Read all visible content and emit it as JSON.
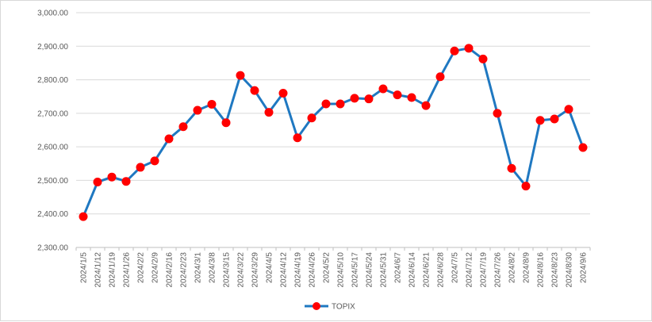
{
  "chart_data": {
    "type": "line",
    "title": "",
    "xlabel": "",
    "ylabel": "",
    "ylim": [
      2300,
      3000
    ],
    "y_ticks": [
      "2,300.00",
      "2,400.00",
      "2,500.00",
      "2,600.00",
      "2,700.00",
      "2,800.00",
      "2,900.00",
      "3,000.00"
    ],
    "grid": true,
    "legend_position": "bottom",
    "categories": [
      "2024/1/5",
      "2024/1/12",
      "2024/1/19",
      "2024/1/26",
      "2024/2/2",
      "2024/2/9",
      "2024/2/16",
      "2024/2/23",
      "2024/3/1",
      "2024/3/8",
      "2024/3/15",
      "2024/3/22",
      "2024/3/29",
      "2024/4/5",
      "2024/4/12",
      "2024/4/19",
      "2024/4/26",
      "2024/5/2",
      "2024/5/10",
      "2024/5/17",
      "2024/5/24",
      "2024/5/31",
      "2024/6/7",
      "2024/6/14",
      "2024/6/21",
      "2024/6/28",
      "2024/7/5",
      "2024/7/12",
      "2024/7/19",
      "2024/7/26",
      "2024/8/2",
      "2024/8/9",
      "2024/8/16",
      "2024/8/23",
      "2024/8/30",
      "2024/9/6"
    ],
    "series": [
      {
        "name": "TOPIX",
        "line_color": "#1f78c1",
        "marker_color": "#ff0000",
        "values": [
          2392,
          2495,
          2510,
          2497,
          2539,
          2558,
          2624,
          2660,
          2709,
          2727,
          2672,
          2813,
          2768,
          2703,
          2760,
          2627,
          2686,
          2728,
          2728,
          2745,
          2743,
          2773,
          2755,
          2747,
          2723,
          2809,
          2886,
          2894,
          2862,
          2700,
          2536,
          2483,
          2679,
          2683,
          2712,
          2598
        ]
      }
    ]
  }
}
